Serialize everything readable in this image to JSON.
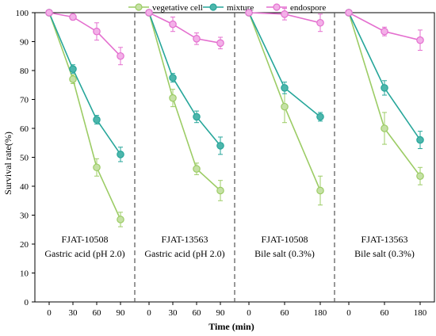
{
  "chart_data": {
    "type": "line",
    "title": "",
    "xlabel": "Time (min)",
    "ylabel": "Survival rate(%)",
    "ylim": [
      0,
      100
    ],
    "yticks": [
      0,
      10,
      20,
      30,
      40,
      50,
      60,
      70,
      80,
      90,
      100
    ],
    "grid": false,
    "legend_position": "top-center",
    "series_styles": [
      {
        "name": "vegetative cell",
        "color": "#9ccc65",
        "fill": "#c5e1a5"
      },
      {
        "name": "mixture",
        "color": "#26a69a",
        "fill": "#4db6ac"
      },
      {
        "name": "endospore",
        "color": "#e46fcf",
        "fill": "#f3b0e8"
      }
    ],
    "panels": [
      {
        "label_line1": "FJAT-10508",
        "label_line2": "Gastric acid (pH 2.0)",
        "x": [
          "0",
          "30",
          "60",
          "90"
        ],
        "series": [
          {
            "name": "vegetative cell",
            "values": [
              100,
              77,
              46.5,
              28.5
            ],
            "errors": [
              0,
              1.5,
              3,
              2.5
            ]
          },
          {
            "name": "mixture",
            "values": [
              100,
              80.5,
              63,
              51
            ],
            "errors": [
              0,
              1.5,
              1.5,
              2.5
            ]
          },
          {
            "name": "endospore",
            "values": [
              100,
              98.5,
              93.5,
              85
            ],
            "errors": [
              0,
              1,
              3,
              3
            ]
          }
        ]
      },
      {
        "label_line1": "FJAT-13563",
        "label_line2": "Gastric acid (pH 2.0)",
        "x": [
          "0",
          "30",
          "60",
          "90"
        ],
        "series": [
          {
            "name": "vegetative cell",
            "values": [
              100,
              70.5,
              46,
              38.5
            ],
            "errors": [
              0,
              3,
              2,
              3.5
            ]
          },
          {
            "name": "mixture",
            "values": [
              100,
              77.5,
              64,
              54
            ],
            "errors": [
              0,
              1.5,
              2,
              3
            ]
          },
          {
            "name": "endospore",
            "values": [
              100,
              96,
              91,
              89.5
            ],
            "errors": [
              0,
              2.5,
              2,
              2
            ]
          }
        ]
      },
      {
        "label_line1": "FJAT-10508",
        "label_line2": "Bile salt (0.3%)",
        "x": [
          "0",
          "60",
          "180"
        ],
        "series": [
          {
            "name": "vegetative cell",
            "values": [
              100,
              67.5,
              38.5
            ],
            "errors": [
              0,
              5.5,
              5
            ]
          },
          {
            "name": "mixture",
            "values": [
              100,
              74,
              64
            ],
            "errors": [
              0,
              2,
              1.5
            ]
          },
          {
            "name": "endospore",
            "values": [
              100,
              99.5,
              96.5
            ],
            "errors": [
              0,
              2,
              3
            ]
          }
        ]
      },
      {
        "label_line1": "FJAT-13563",
        "label_line2": "Bile salt (0.3%)",
        "x": [
          "0",
          "60",
          "180"
        ],
        "series": [
          {
            "name": "vegetative cell",
            "values": [
              100,
              60,
              43.5
            ],
            "errors": [
              0,
              5.5,
              3
            ]
          },
          {
            "name": "mixture",
            "values": [
              100,
              74,
              56
            ],
            "errors": [
              0,
              2.5,
              3
            ]
          },
          {
            "name": "endospore",
            "values": [
              100,
              93.5,
              90.5
            ],
            "errors": [
              0,
              1.5,
              3.5
            ]
          }
        ]
      }
    ]
  }
}
